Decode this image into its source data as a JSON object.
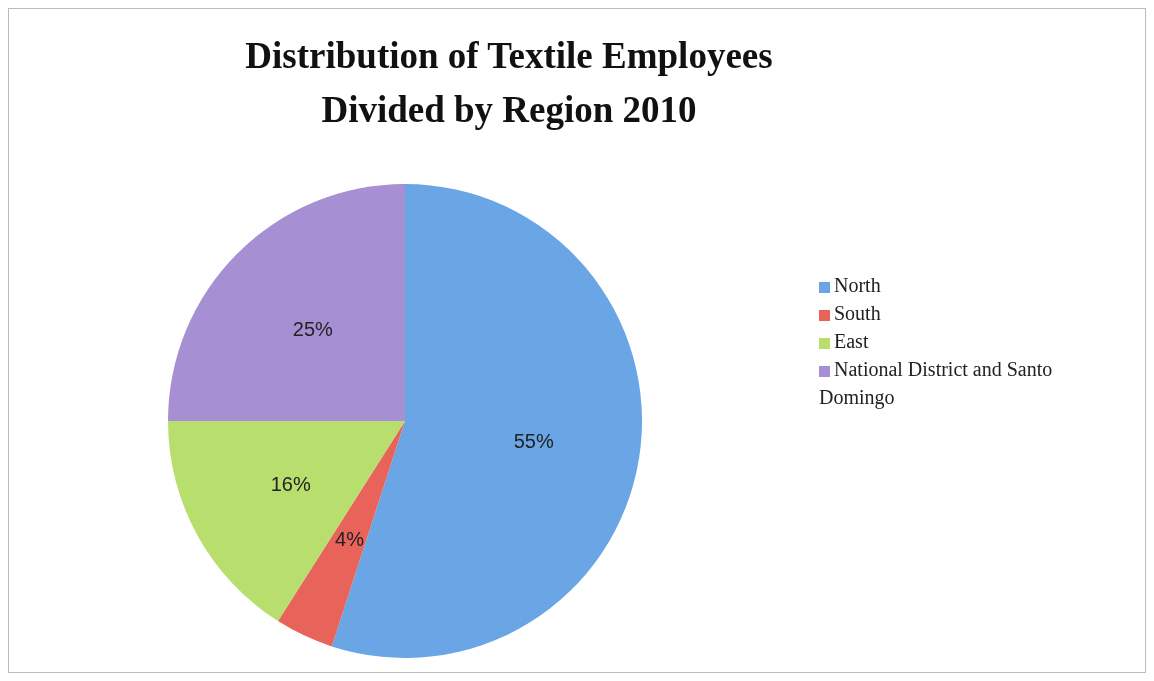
{
  "chart_data": {
    "type": "pie",
    "title": "Distribution of Textile Employees Divided by Region 2010",
    "categories": [
      "North",
      "South",
      "East",
      "National District and Santo Domingo"
    ],
    "values": [
      55,
      4,
      16,
      25
    ],
    "value_labels": [
      "55%",
      "4%",
      "16%",
      "25%"
    ],
    "colors": [
      "#6aa5e6",
      "#e8635a",
      "#b8de6e",
      "#a68fd2"
    ],
    "legend": "right"
  }
}
